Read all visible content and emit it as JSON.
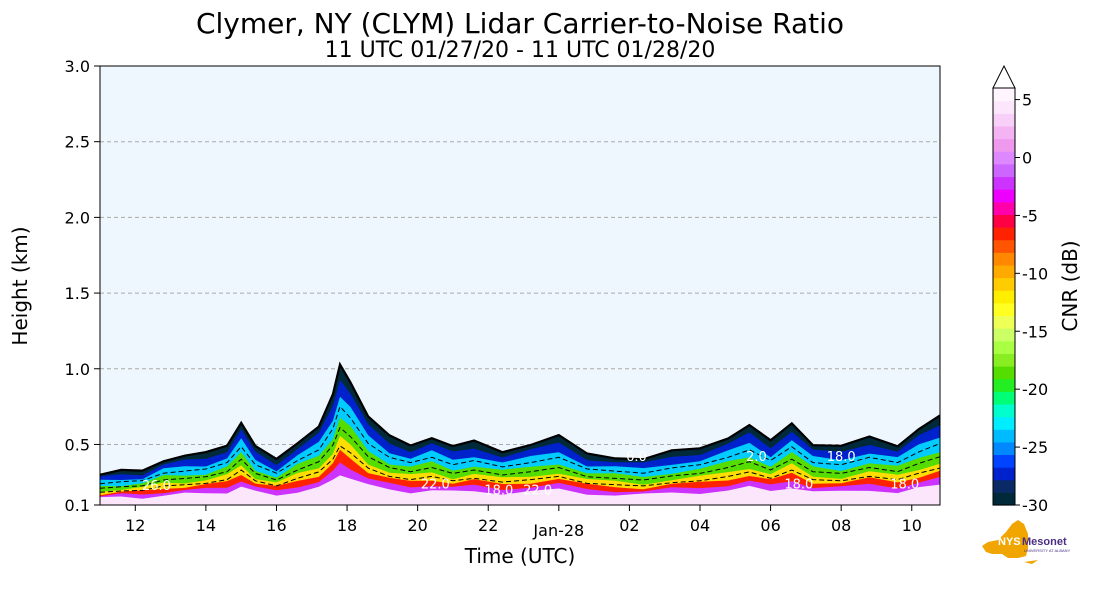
{
  "chart_data": {
    "type": "heatmap",
    "title": "Clymer, NY (CLYM) Lidar Carrier-to-Noise Ratio",
    "subtitle": "11 UTC 01/27/20 - 11 UTC 01/28/20",
    "xlabel": "Time (UTC)",
    "ylabel": "Height (km)",
    "x_tick_labels": [
      "12",
      "14",
      "16",
      "18",
      "20",
      "22",
      "Jan-28",
      "02",
      "04",
      "06",
      "08",
      "10"
    ],
    "x_tick_hours": [
      12,
      14,
      16,
      18,
      20,
      22,
      24,
      26,
      28,
      30,
      32,
      34
    ],
    "xlim_hours": [
      11,
      34.8
    ],
    "y_tick_labels": [
      "0.1",
      "0.5",
      "1.0",
      "1.5",
      "2.0",
      "2.5",
      "3.0"
    ],
    "y_ticks": [
      0.1,
      0.5,
      1.0,
      1.5,
      2.0,
      2.5,
      3.0
    ],
    "ylim": [
      0.1,
      3.0
    ],
    "grid": "horizontal dashed",
    "background_color": "#eef7fd",
    "colorbar": {
      "label": "CNR (dB)",
      "range": [
        -30,
        6
      ],
      "tick_labels": [
        "5",
        "0",
        "-5",
        "-10",
        "-15",
        "-20",
        "-25",
        "-30"
      ],
      "ticks": [
        5,
        0,
        -5,
        -10,
        -15,
        -20,
        -25,
        -30
      ],
      "extend": "max",
      "colors": [
        "#002a3a",
        "#0a2a66",
        "#0022cc",
        "#0044ff",
        "#0088ff",
        "#00bbff",
        "#00eeff",
        "#00ffcc",
        "#00ff77",
        "#22ee22",
        "#55dd00",
        "#88ee22",
        "#aaff44",
        "#ccff66",
        "#eeff55",
        "#ffff22",
        "#ffee00",
        "#ffcc00",
        "#ffaa00",
        "#ff8800",
        "#ff5500",
        "#ff2200",
        "#ff0044",
        "#ff00aa",
        "#ee00ff",
        "#cc33ff",
        "#cc66ff",
        "#dd88ff",
        "#ee99ee",
        "#f4b4f4",
        "#f8cff8",
        "#fce6fc",
        "#fff5ff"
      ]
    },
    "cloud_top_km": [
      {
        "t": 11.0,
        "h": 0.3
      },
      {
        "t": 11.6,
        "h": 0.32
      },
      {
        "t": 12.2,
        "h": 0.33
      },
      {
        "t": 12.8,
        "h": 0.4
      },
      {
        "t": 13.4,
        "h": 0.42
      },
      {
        "t": 14.0,
        "h": 0.44
      },
      {
        "t": 14.6,
        "h": 0.5
      },
      {
        "t": 15.0,
        "h": 0.65
      },
      {
        "t": 15.4,
        "h": 0.48
      },
      {
        "t": 16.0,
        "h": 0.4
      },
      {
        "t": 16.6,
        "h": 0.52
      },
      {
        "t": 17.2,
        "h": 0.62
      },
      {
        "t": 17.6,
        "h": 0.82
      },
      {
        "t": 17.8,
        "h": 1.03
      },
      {
        "t": 18.1,
        "h": 0.92
      },
      {
        "t": 18.6,
        "h": 0.68
      },
      {
        "t": 19.2,
        "h": 0.55
      },
      {
        "t": 19.8,
        "h": 0.5
      },
      {
        "t": 20.4,
        "h": 0.55
      },
      {
        "t": 21.0,
        "h": 0.48
      },
      {
        "t": 21.6,
        "h": 0.52
      },
      {
        "t": 22.4,
        "h": 0.46
      },
      {
        "t": 23.2,
        "h": 0.5
      },
      {
        "t": 24.0,
        "h": 0.55
      },
      {
        "t": 24.8,
        "h": 0.44
      },
      {
        "t": 25.6,
        "h": 0.42
      },
      {
        "t": 26.4,
        "h": 0.4
      },
      {
        "t": 27.2,
        "h": 0.45
      },
      {
        "t": 28.0,
        "h": 0.48
      },
      {
        "t": 28.8,
        "h": 0.55
      },
      {
        "t": 29.4,
        "h": 0.62
      },
      {
        "t": 30.0,
        "h": 0.52
      },
      {
        "t": 30.6,
        "h": 0.65
      },
      {
        "t": 31.2,
        "h": 0.5
      },
      {
        "t": 32.0,
        "h": 0.48
      },
      {
        "t": 32.8,
        "h": 0.55
      },
      {
        "t": 33.6,
        "h": 0.5
      },
      {
        "t": 34.2,
        "h": 0.6
      },
      {
        "t": 34.8,
        "h": 0.68
      }
    ],
    "contour_labels": [
      {
        "t": 12.6,
        "h": 0.2,
        "text": "26.0"
      },
      {
        "t": 20.5,
        "h": 0.21,
        "text": "22.0"
      },
      {
        "t": 22.3,
        "h": 0.17,
        "text": "18.0"
      },
      {
        "t": 23.4,
        "h": 0.17,
        "text": "22.0"
      },
      {
        "t": 26.2,
        "h": 0.39,
        "text": "6.0"
      },
      {
        "t": 29.6,
        "h": 0.39,
        "text": "2.0"
      },
      {
        "t": 30.8,
        "h": 0.21,
        "text": "18.0"
      },
      {
        "t": 32.0,
        "h": 0.39,
        "text": "18.0"
      },
      {
        "t": 33.8,
        "h": 0.21,
        "text": "18.0"
      }
    ]
  },
  "logo": {
    "name": "NYS Mesonet",
    "prefix": "NYS",
    "brand": "Mesonet",
    "tagline": "UNIVERSITY AT ALBANY",
    "colors": {
      "state": "#f0a500",
      "text": "#4b2e83"
    }
  }
}
